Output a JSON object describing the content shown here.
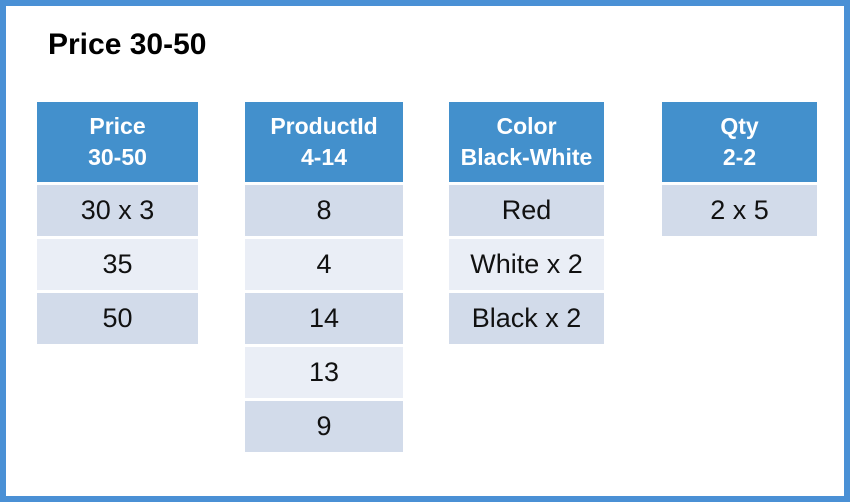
{
  "title": "Price 30-50",
  "colors": {
    "frame": "#4a90d5",
    "page_bg": "#ffffff",
    "header_bg": "#4390cc",
    "header_fg": "#ffffff",
    "row_dark": "#d2dbea",
    "row_light": "#eaeef6",
    "cell_fg": "#111111",
    "table_border": "#ffffff"
  },
  "tables": [
    {
      "id": "price",
      "header": [
        "Price",
        "30-50"
      ],
      "rows": [
        "30 x 3",
        "35",
        "50"
      ]
    },
    {
      "id": "product-id",
      "header": [
        "ProductId",
        "4-14"
      ],
      "rows": [
        "8",
        "4",
        "14",
        "13",
        "9"
      ]
    },
    {
      "id": "color",
      "header": [
        "Color",
        "Black-White"
      ],
      "rows": [
        "Red",
        "White x 2",
        "Black x 2"
      ]
    },
    {
      "id": "qty",
      "header": [
        "Qty",
        "2-2"
      ],
      "rows": [
        "2 x 5"
      ]
    }
  ]
}
